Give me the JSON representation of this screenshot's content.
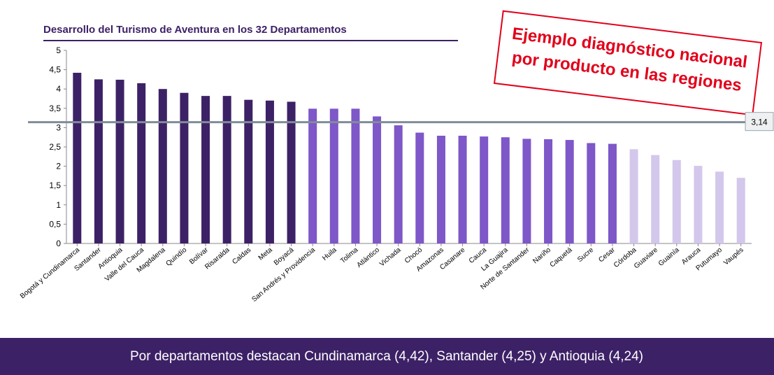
{
  "chart_data": {
    "type": "bar",
    "title": "Desarrollo del Turismo de Aventura en los 32 Departamentos",
    "categories": [
      "Bogotá y Cundinamarca",
      "Santander",
      "Antioquia",
      "Valle del Cauca",
      "Magdalena",
      "Quindío",
      "Bolívar",
      "Risaralda",
      "Caldas",
      "Meta",
      "Boyacá",
      "San Andrés y Providencia",
      "Huila",
      "Tolima",
      "Atlántico",
      "Vichada",
      "Chocó",
      "Amazonas",
      "Casanare",
      "Cauca",
      "La Guajira",
      "Norte de Santander",
      "Nariño",
      "Caquetá",
      "Sucre",
      "Cesar",
      "Córdoba",
      "Guaviare",
      "Guainía",
      "Arauca",
      "Putumayo",
      "Vaupés"
    ],
    "values": [
      4.42,
      4.25,
      4.24,
      4.15,
      4.0,
      3.9,
      3.82,
      3.82,
      3.72,
      3.7,
      3.67,
      3.49,
      3.49,
      3.49,
      3.29,
      3.06,
      2.87,
      2.79,
      2.79,
      2.77,
      2.75,
      2.71,
      2.7,
      2.68,
      2.6,
      2.58,
      2.44,
      2.29,
      2.16,
      2.01,
      1.86,
      1.7
    ],
    "colors": [
      "#3d2166",
      "#3d2166",
      "#3d2166",
      "#3d2166",
      "#3d2166",
      "#3d2166",
      "#3d2166",
      "#3d2166",
      "#3d2166",
      "#3d2166",
      "#3d2166",
      "#7e57c8",
      "#7e57c8",
      "#7e57c8",
      "#7e57c8",
      "#7e57c8",
      "#7e57c8",
      "#7e57c8",
      "#7e57c8",
      "#7e57c8",
      "#7e57c8",
      "#7e57c8",
      "#7e57c8",
      "#7e57c8",
      "#7e57c8",
      "#7e57c8",
      "#d3c7ec",
      "#d3c7ec",
      "#d3c7ec",
      "#d3c7ec",
      "#d3c7ec",
      "#d3c7ec"
    ],
    "ylim": [
      0,
      5
    ],
    "yticks": [
      0,
      {
        "value": 0.5,
        "label": "0,5"
      },
      1,
      {
        "value": 1.5,
        "label": "1,5"
      },
      2,
      {
        "value": 2.5,
        "label": "2,5"
      },
      3,
      {
        "value": 3.5,
        "label": "3,5"
      },
      4,
      {
        "value": 4.5,
        "label": "4,5"
      },
      5
    ],
    "reference_line": {
      "value": 3.14,
      "label": "3,14"
    },
    "annotation": [
      "Ejemplo diagnóstico nacional",
      "por producto en las regiones"
    ],
    "footer": "Por departamentos destacan Cundinamarca (4,42), Santander (4,25) y Antioquia (4,24)"
  }
}
